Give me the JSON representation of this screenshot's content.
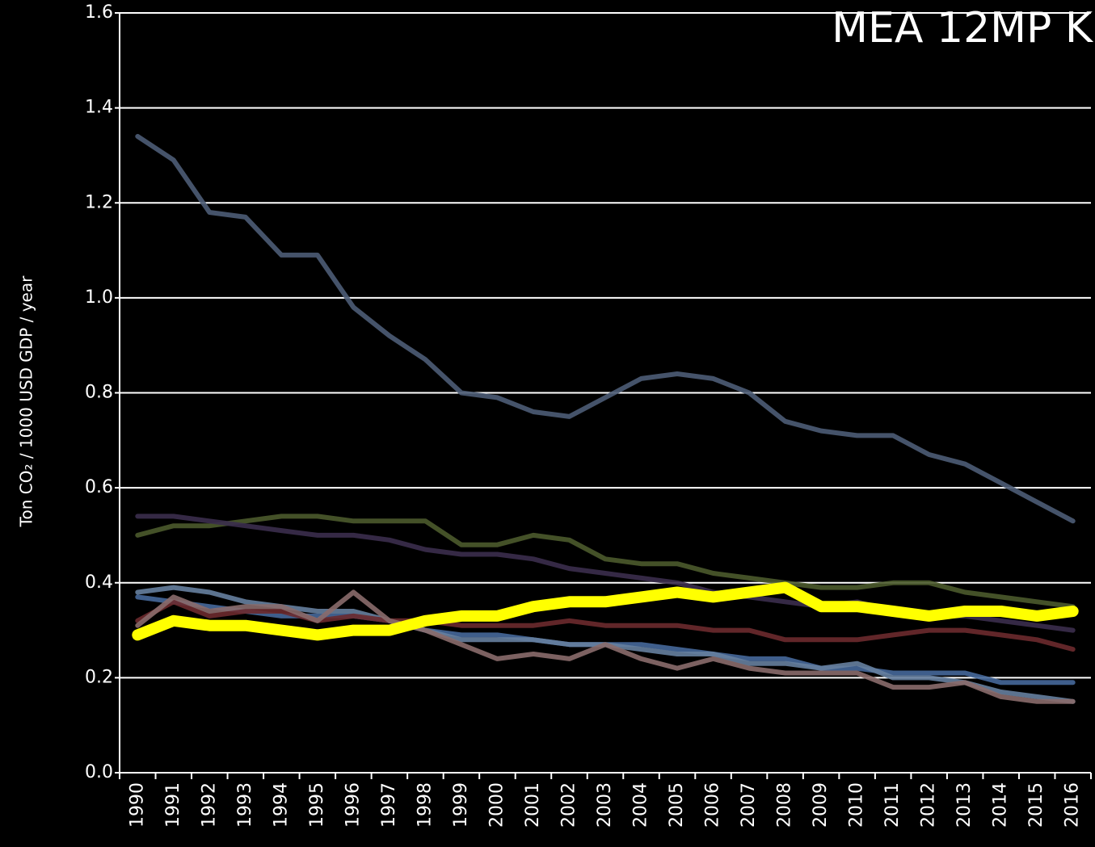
{
  "chart_data": {
    "type": "line",
    "title": "MEA 12MP K",
    "y_label": "Ton CO₂ / 1000 USD GDP / year",
    "categories": [
      "1990",
      "1991",
      "1992",
      "1993",
      "1994",
      "1995",
      "1996",
      "1997",
      "1998",
      "1999",
      "2000",
      "2001",
      "2002",
      "2003",
      "2004",
      "2005",
      "2006",
      "2007",
      "2008",
      "2009",
      "2010",
      "2011",
      "2012",
      "2013",
      "2014",
      "2015",
      "2016"
    ],
    "ylim": [
      0,
      1.6
    ],
    "yticks": [
      {
        "value": 0,
        "label": "0.0"
      },
      0.2,
      0.4,
      0.6,
      0.8,
      {
        "value": 1,
        "label": "1.0"
      },
      1.2,
      1.4,
      1.6
    ],
    "grid": true,
    "series": [
      {
        "color": "#4d5c75",
        "values": [
          1.34,
          1.29,
          1.18,
          1.17,
          1.09,
          1.09,
          0.98,
          0.92,
          0.87,
          0.8,
          0.79,
          0.76,
          0.75,
          0.79,
          0.83,
          0.84,
          0.83,
          0.8,
          0.74,
          0.72,
          0.71,
          0.71,
          0.67,
          0.65,
          0.61,
          0.57,
          0.53
        ]
      },
      {
        "color": "#4b5a2c",
        "values": [
          0.5,
          0.52,
          0.52,
          0.53,
          0.54,
          0.54,
          0.53,
          0.53,
          0.53,
          0.48,
          0.48,
          0.5,
          0.49,
          0.45,
          0.44,
          0.44,
          0.42,
          0.41,
          0.4,
          0.39,
          0.39,
          0.4,
          0.4,
          0.38,
          0.37,
          0.36,
          0.35
        ]
      },
      {
        "color": "#3b2d4c",
        "values": [
          0.54,
          0.54,
          0.53,
          0.52,
          0.51,
          0.5,
          0.5,
          0.49,
          0.47,
          0.46,
          0.46,
          0.45,
          0.43,
          0.42,
          0.41,
          0.4,
          0.38,
          0.37,
          0.36,
          0.35,
          0.36,
          0.34,
          0.33,
          0.33,
          0.32,
          0.31,
          0.3
        ]
      },
      {
        "color": "#46689a",
        "values": [
          0.37,
          0.36,
          0.35,
          0.34,
          0.33,
          0.33,
          0.33,
          0.32,
          0.3,
          0.29,
          0.29,
          0.28,
          0.27,
          0.27,
          0.27,
          0.26,
          0.25,
          0.24,
          0.24,
          0.22,
          0.22,
          0.21,
          0.21,
          0.21,
          0.19,
          0.19,
          0.19
        ]
      },
      {
        "color": "#667f9f",
        "values": [
          0.38,
          0.39,
          0.38,
          0.36,
          0.35,
          0.34,
          0.34,
          0.32,
          0.3,
          0.28,
          0.28,
          0.28,
          0.27,
          0.27,
          0.26,
          0.25,
          0.25,
          0.23,
          0.23,
          0.22,
          0.23,
          0.2,
          0.2,
          0.19,
          0.17,
          0.16,
          0.15
        ]
      },
      {
        "color": "#6b2a2d",
        "values": [
          0.32,
          0.36,
          0.33,
          0.34,
          0.34,
          0.32,
          0.33,
          0.32,
          0.32,
          0.31,
          0.31,
          0.31,
          0.32,
          0.31,
          0.31,
          0.31,
          0.3,
          0.3,
          0.28,
          0.28,
          0.28,
          0.29,
          0.3,
          0.3,
          0.29,
          0.28,
          0.26
        ]
      },
      {
        "color": "#8a6c6c",
        "values": [
          0.31,
          0.37,
          0.34,
          0.35,
          0.35,
          0.32,
          0.38,
          0.32,
          0.3,
          0.27,
          0.24,
          0.25,
          0.24,
          0.27,
          0.24,
          0.22,
          0.24,
          0.22,
          0.21,
          0.21,
          0.21,
          0.18,
          0.18,
          0.19,
          0.16,
          0.15,
          0.15
        ]
      },
      {
        "color": "#ffff00",
        "values": [
          0.29,
          0.32,
          0.31,
          0.31,
          0.3,
          0.29,
          0.3,
          0.3,
          0.32,
          0.33,
          0.33,
          0.35,
          0.36,
          0.36,
          0.37,
          0.38,
          0.37,
          0.38,
          0.39,
          0.35,
          0.35,
          0.34,
          0.33,
          0.34,
          0.34,
          0.33,
          0.34
        ]
      }
    ]
  }
}
